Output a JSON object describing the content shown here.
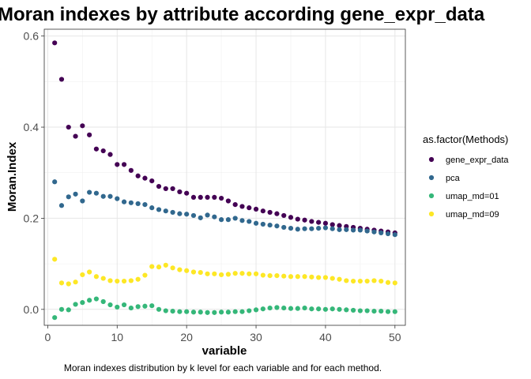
{
  "chart_data": {
    "type": "scatter",
    "title": "Moran indexes by attribute according  gene_expr_data",
    "xlabel": "variable",
    "ylabel": "Moran.Index",
    "caption": "Moran indexes distribution by k level for each variable and for each method.",
    "xlim": [
      -0.5,
      51.5
    ],
    "ylim": [
      -0.035,
      0.615
    ],
    "x_ticks": [
      0,
      10,
      20,
      30,
      40,
      50
    ],
    "y_ticks": [
      0.0,
      0.2,
      0.4,
      0.6
    ],
    "y_tick_labels": [
      "0.0",
      "0.2",
      "0.4",
      "0.6"
    ],
    "grid": true,
    "legend": {
      "title": "as.factor(Methods)",
      "position": "right"
    },
    "x": [
      1,
      2,
      3,
      4,
      5,
      6,
      7,
      8,
      9,
      10,
      11,
      12,
      13,
      14,
      15,
      16,
      17,
      18,
      19,
      20,
      21,
      22,
      23,
      24,
      25,
      26,
      27,
      28,
      29,
      30,
      31,
      32,
      33,
      34,
      35,
      36,
      37,
      38,
      39,
      40,
      41,
      42,
      43,
      44,
      45,
      46,
      47,
      48,
      49,
      50
    ],
    "series": [
      {
        "name": "gene_expr_data",
        "color": "#440154",
        "values": [
          0.585,
          0.505,
          0.4,
          0.38,
          0.403,
          0.383,
          0.352,
          0.348,
          0.34,
          0.318,
          0.318,
          0.305,
          0.293,
          0.288,
          0.282,
          0.27,
          0.265,
          0.265,
          0.258,
          0.255,
          0.246,
          0.246,
          0.246,
          0.246,
          0.244,
          0.238,
          0.23,
          0.226,
          0.223,
          0.22,
          0.216,
          0.213,
          0.21,
          0.206,
          0.202,
          0.198,
          0.196,
          0.193,
          0.191,
          0.189,
          0.186,
          0.184,
          0.182,
          0.18,
          0.178,
          0.176,
          0.174,
          0.172,
          0.17,
          0.168
        ]
      },
      {
        "name": "pca",
        "color": "#31688e",
        "values": [
          0.28,
          0.228,
          0.247,
          0.253,
          0.238,
          0.257,
          0.255,
          0.248,
          0.248,
          0.243,
          0.236,
          0.234,
          0.232,
          0.23,
          0.223,
          0.219,
          0.216,
          0.213,
          0.21,
          0.209,
          0.206,
          0.201,
          0.207,
          0.203,
          0.197,
          0.197,
          0.2,
          0.195,
          0.193,
          0.189,
          0.187,
          0.185,
          0.183,
          0.18,
          0.178,
          0.176,
          0.177,
          0.177,
          0.178,
          0.179,
          0.177,
          0.175,
          0.175,
          0.174,
          0.174,
          0.172,
          0.17,
          0.168,
          0.166,
          0.164
        ]
      },
      {
        "name": "umap_md=01",
        "color": "#35b779",
        "values": [
          -0.018,
          0.0,
          -0.001,
          0.011,
          0.015,
          0.02,
          0.023,
          0.017,
          0.01,
          0.005,
          0.01,
          0.003,
          0.006,
          0.007,
          0.008,
          0.0,
          -0.003,
          -0.004,
          -0.005,
          -0.005,
          -0.006,
          -0.006,
          -0.007,
          -0.007,
          -0.006,
          -0.006,
          -0.005,
          -0.005,
          -0.003,
          -0.001,
          0.001,
          0.003,
          0.004,
          0.003,
          0.002,
          0.002,
          0.003,
          0.001,
          0.001,
          0.0,
          0.001,
          0.0,
          -0.001,
          -0.002,
          -0.003,
          -0.003,
          -0.004,
          -0.004,
          -0.005,
          -0.005
        ]
      },
      {
        "name": "umap_md=09",
        "color": "#fde725",
        "values": [
          0.11,
          0.058,
          0.056,
          0.06,
          0.076,
          0.082,
          0.072,
          0.068,
          0.063,
          0.062,
          0.062,
          0.063,
          0.066,
          0.075,
          0.094,
          0.093,
          0.097,
          0.091,
          0.087,
          0.085,
          0.082,
          0.081,
          0.078,
          0.078,
          0.076,
          0.077,
          0.079,
          0.079,
          0.078,
          0.078,
          0.075,
          0.074,
          0.074,
          0.073,
          0.072,
          0.072,
          0.072,
          0.071,
          0.07,
          0.07,
          0.068,
          0.066,
          0.063,
          0.062,
          0.062,
          0.062,
          0.063,
          0.062,
          0.059,
          0.058
        ]
      }
    ]
  }
}
